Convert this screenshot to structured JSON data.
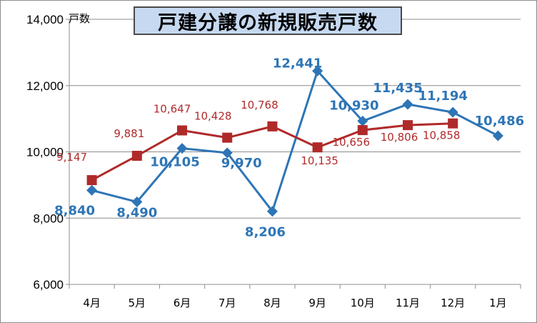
{
  "chart_data": {
    "type": "line",
    "title": "戸建分譲の新規販売戸数",
    "ylabel": "戸数",
    "xlabel": "",
    "ylim": [
      6000,
      14000
    ],
    "yticks": [
      6000,
      8000,
      10000,
      12000,
      14000
    ],
    "ytick_labels": [
      "6,000",
      "8,000",
      "10,000",
      "12,000",
      "14,000"
    ],
    "grid": true,
    "categories": [
      "4月",
      "5月",
      "6月",
      "7月",
      "8月",
      "9月",
      "10月",
      "11月",
      "12月",
      "1月"
    ],
    "series": [
      {
        "color": "#2e75b6",
        "marker": "diamond",
        "values": [
          8840,
          8490,
          10105,
          9970,
          8206,
          12441,
          10930,
          11435,
          11194,
          10486
        ],
        "labels": [
          "8,840",
          "8,490",
          "10,105",
          "9,970",
          "8,206",
          "12,441",
          "10,930",
          "11,435",
          "11,194",
          "10,486"
        ]
      },
      {
        "color": "#b02a2a",
        "marker": "square",
        "values": [
          9147,
          9881,
          10647,
          10428,
          10768,
          10135,
          10656,
          10806,
          10858,
          null
        ],
        "labels": [
          "9,147",
          "9,881",
          "10,647",
          "10,428",
          "10,768",
          "10,135",
          "10,656",
          "10,806",
          "10,858",
          null
        ]
      }
    ]
  }
}
